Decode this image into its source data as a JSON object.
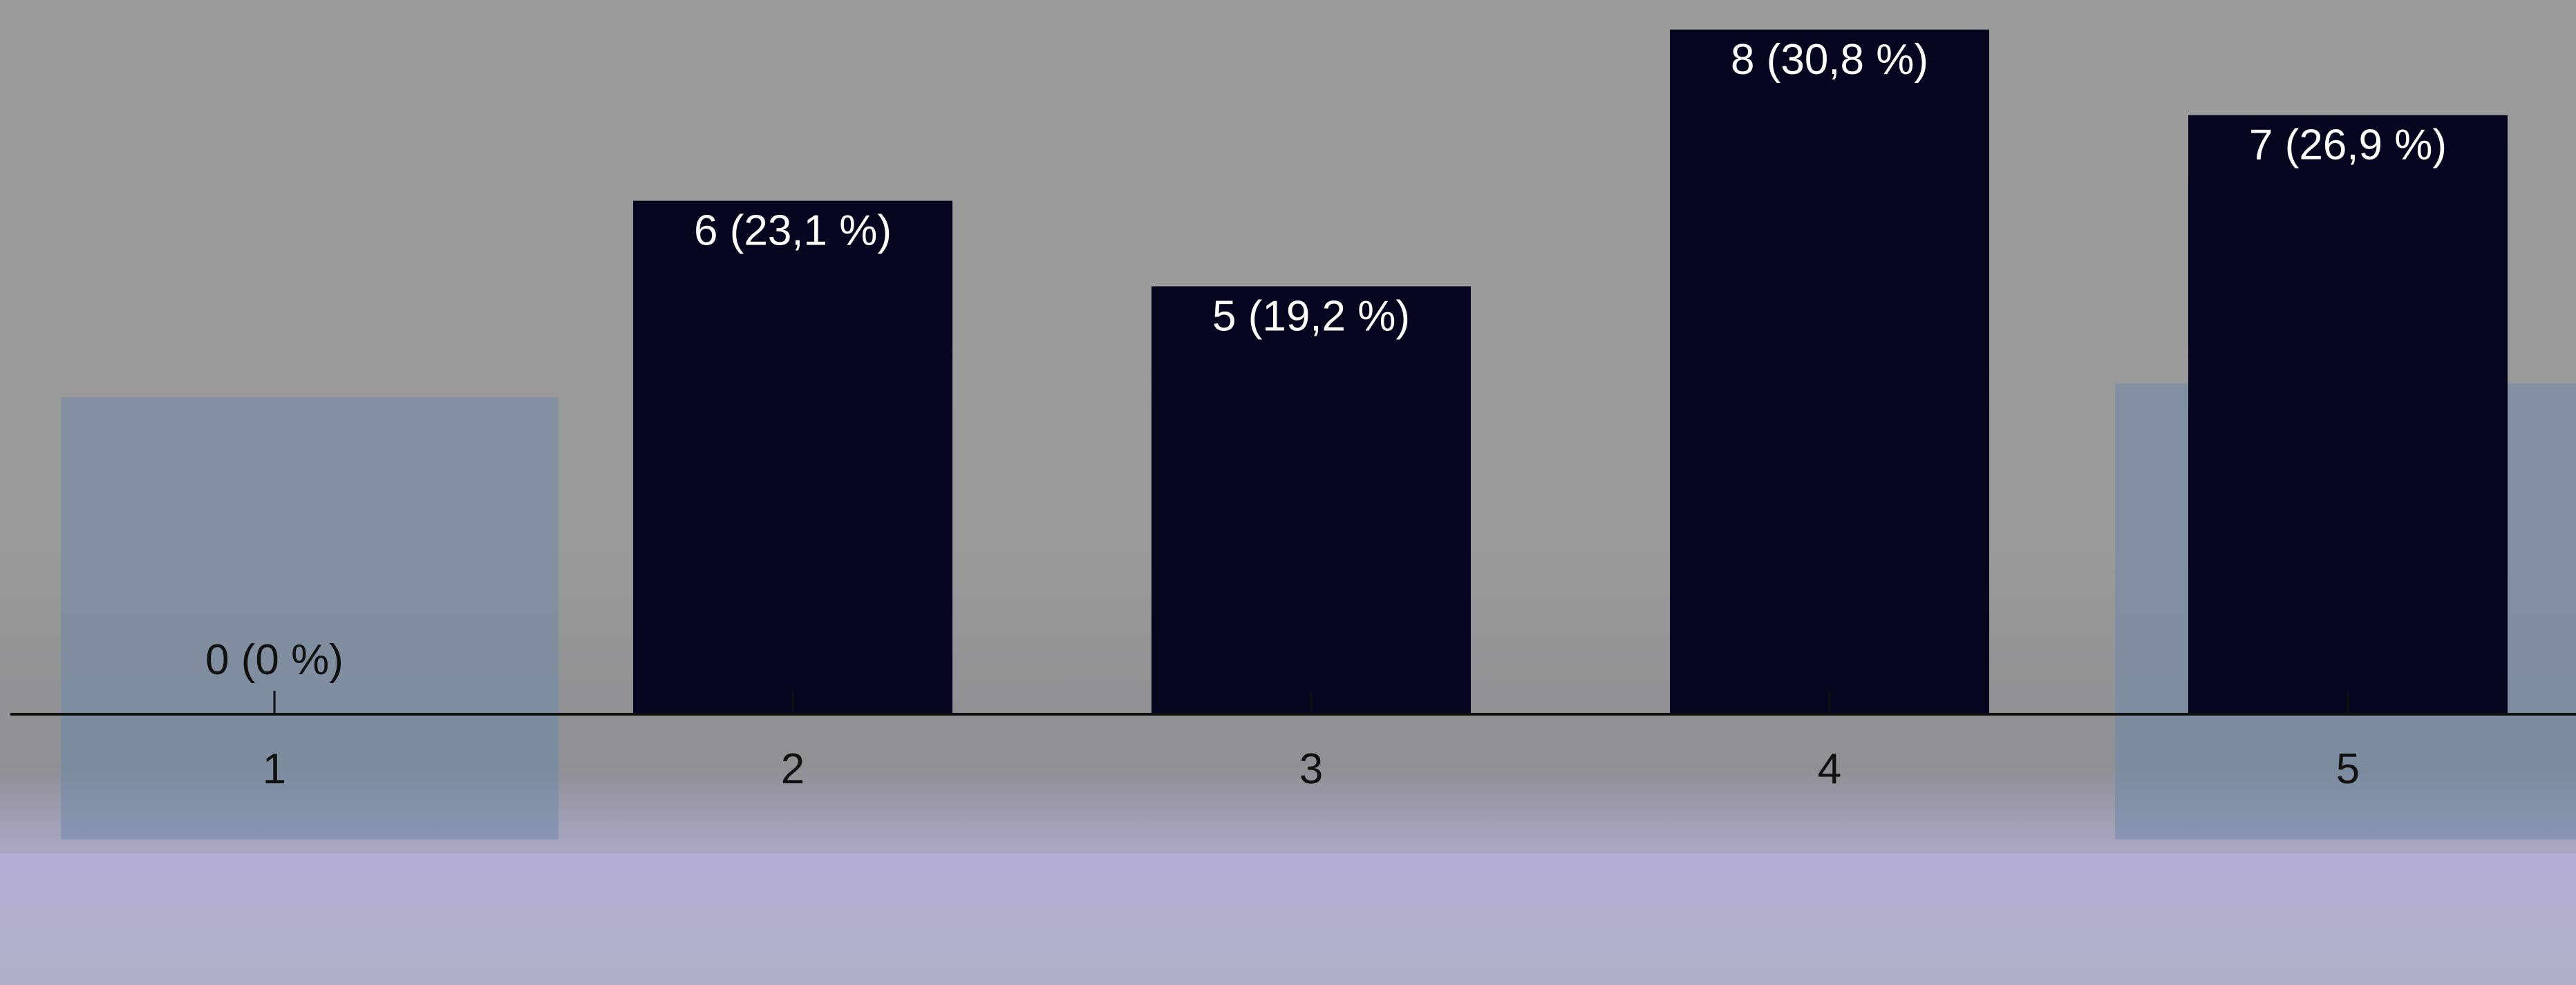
{
  "chart_data": {
    "type": "bar",
    "categories": [
      "1",
      "2",
      "3",
      "4",
      "5"
    ],
    "values": [
      0,
      6,
      5,
      8,
      7
    ],
    "value_labels": [
      "0 (0 %)",
      "6 (23,1 %)",
      "5 (19,2 %)",
      "8 (30,8 %)",
      "7 (26,9 %)"
    ],
    "title": "",
    "xlabel": "",
    "ylabel": "",
    "ylim": [
      0,
      8.2
    ],
    "grid": false,
    "legend": "none",
    "bar_color": "#04061f",
    "axis_color": "#111111",
    "background": "faded photograph of a cheerleading team"
  }
}
